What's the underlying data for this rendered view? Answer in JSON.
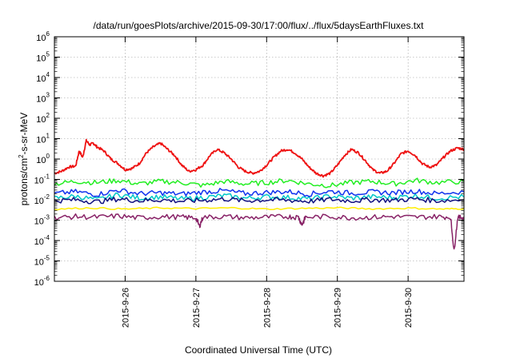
{
  "chart_data": {
    "type": "line",
    "title": "/data/run/goesPlots/archive/2015-09-30/17:00/flux/../flux/5daysEarthFluxes.txt",
    "xlabel": "Coordinated Universal Time (UTC)",
    "ylabel_parts": [
      "protons/cm",
      "2",
      "-s-sr-MeV"
    ],
    "yscale": "log",
    "ylim": [
      1e-06,
      1000000.0
    ],
    "xlim_days": [
      "2015-09-25 00:00",
      "2015-09-30 19:00"
    ],
    "x_ticks": [
      "2015-9-26",
      "2015-9-27",
      "2015-9-28",
      "2015-9-29",
      "2015-9-30"
    ],
    "y_ticks": [
      {
        "base": "10",
        "exp": "-6"
      },
      {
        "base": "10",
        "exp": "-5"
      },
      {
        "base": "10",
        "exp": "-4"
      },
      {
        "base": "10",
        "exp": "-3"
      },
      {
        "base": "10",
        "exp": "-2"
      },
      {
        "base": "10",
        "exp": "-1"
      },
      {
        "base": "10",
        "exp": "0"
      },
      {
        "base": "10",
        "exp": "1"
      },
      {
        "base": "10",
        "exp": "2"
      },
      {
        "base": "10",
        "exp": "3"
      },
      {
        "base": "10",
        "exp": "4"
      },
      {
        "base": "10",
        "exp": "5"
      },
      {
        "base": "10",
        "exp": "6"
      }
    ],
    "grid": true,
    "series": [
      {
        "color": "#ee1111",
        "x": [
          0,
          0.1,
          0.2,
          0.3,
          0.35,
          0.4,
          0.45,
          0.5,
          0.55,
          0.6,
          0.7,
          0.8,
          0.9,
          1.0,
          1.1,
          1.2,
          1.3,
          1.4,
          1.5,
          1.6,
          1.7,
          1.8,
          1.9,
          2.0,
          2.1,
          2.2,
          2.3,
          2.4,
          2.5,
          2.6,
          2.7,
          2.8,
          2.9,
          3.0,
          3.1,
          3.2,
          3.3,
          3.4,
          3.5,
          3.6,
          3.7,
          3.8,
          3.9,
          4.0,
          4.1,
          4.2,
          4.3,
          4.4,
          4.5,
          4.6,
          4.7,
          4.8,
          4.9,
          5.0,
          5.1,
          5.2,
          5.3,
          5.4,
          5.5,
          5.6,
          5.7,
          5.79
        ],
        "values": [
          0.2,
          0.25,
          0.4,
          0.45,
          2.5,
          1.2,
          8,
          5,
          6,
          4,
          2.5,
          1,
          0.6,
          0.3,
          0.35,
          0.6,
          2,
          4,
          6,
          3,
          1.5,
          0.5,
          0.25,
          0.3,
          0.5,
          1.5,
          3,
          2,
          1,
          0.4,
          0.25,
          0.2,
          0.25,
          0.5,
          1.2,
          2.5,
          3,
          2,
          1,
          0.4,
          0.2,
          0.15,
          0.2,
          0.5,
          1.5,
          3,
          2,
          0.8,
          0.3,
          0.2,
          0.25,
          0.6,
          1.8,
          2.5,
          1.5,
          0.6,
          0.4,
          0.5,
          1.2,
          2.5,
          3.5,
          3.0
        ]
      },
      {
        "color": "#22ee22",
        "x": [
          0,
          0.3,
          0.6,
          0.9,
          1.2,
          1.5,
          1.8,
          2.1,
          2.4,
          2.7,
          3.0,
          3.3,
          3.6,
          3.9,
          4.2,
          4.5,
          4.8,
          5.1,
          5.4,
          5.79
        ],
        "values": [
          0.06,
          0.08,
          0.07,
          0.09,
          0.06,
          0.08,
          0.07,
          0.05,
          0.08,
          0.06,
          0.07,
          0.09,
          0.06,
          0.05,
          0.07,
          0.08,
          0.06,
          0.09,
          0.07,
          0.08
        ]
      },
      {
        "color": "#00c8c8",
        "x": [
          0,
          0.3,
          0.6,
          0.9,
          1.2,
          1.5,
          1.8,
          2.1,
          2.4,
          2.7,
          3.0,
          3.3,
          3.6,
          3.9,
          4.2,
          4.5,
          4.8,
          5.1,
          5.4,
          5.79
        ],
        "values": [
          0.012,
          0.015,
          0.01,
          0.018,
          0.012,
          0.014,
          0.011,
          0.013,
          0.016,
          0.012,
          0.014,
          0.013,
          0.011,
          0.015,
          0.012,
          0.014,
          0.013,
          0.016,
          0.012,
          0.014
        ]
      },
      {
        "color": "#1133ee",
        "x": [
          0,
          0.3,
          0.6,
          0.9,
          1.2,
          1.5,
          1.8,
          2.1,
          2.4,
          2.7,
          3.0,
          3.3,
          3.6,
          3.9,
          4.2,
          4.5,
          4.8,
          5.1,
          5.4,
          5.79
        ],
        "values": [
          0.02,
          0.025,
          0.018,
          0.03,
          0.02,
          0.022,
          0.019,
          0.024,
          0.028,
          0.02,
          0.023,
          0.025,
          0.019,
          0.026,
          0.021,
          0.024,
          0.022,
          0.027,
          0.02,
          0.025
        ]
      },
      {
        "color": "#101080",
        "x": [
          0,
          0.3,
          0.6,
          0.9,
          1.2,
          1.5,
          1.8,
          2.1,
          2.4,
          2.7,
          3.0,
          3.3,
          3.6,
          3.9,
          4.2,
          4.5,
          4.8,
          5.1,
          5.4,
          5.79
        ],
        "values": [
          0.009,
          0.01,
          0.008,
          0.011,
          0.009,
          0.01,
          0.0085,
          0.0095,
          0.011,
          0.009,
          0.01,
          0.0095,
          0.0085,
          0.0105,
          0.009,
          0.01,
          0.0095,
          0.011,
          0.009,
          0.01
        ]
      },
      {
        "color": "#ffee00",
        "x": [
          0,
          0.5,
          1.0,
          1.5,
          2.0,
          2.5,
          3.0,
          3.5,
          4.0,
          4.5,
          5.0,
          5.5,
          5.79
        ],
        "values": [
          0.0035,
          0.004,
          0.0035,
          0.004,
          0.0037,
          0.004,
          0.0035,
          0.0038,
          0.004,
          0.0036,
          0.0039,
          0.0035,
          0.0037
        ]
      },
      {
        "color": "#882266",
        "x": [
          0,
          0.3,
          0.6,
          0.9,
          1.2,
          1.5,
          1.8,
          2.0,
          2.05,
          2.1,
          2.4,
          2.7,
          3.0,
          3.3,
          3.45,
          3.5,
          3.55,
          3.9,
          4.2,
          4.5,
          4.8,
          5.1,
          5.4,
          5.6,
          5.65,
          5.7,
          5.79
        ],
        "values": [
          0.0013,
          0.0015,
          0.0014,
          0.0016,
          0.0013,
          0.0015,
          0.0014,
          0.0013,
          0.0005,
          0.0014,
          0.0015,
          0.0013,
          0.0014,
          0.0015,
          0.0014,
          0.0006,
          0.0014,
          0.0015,
          0.0013,
          0.0014,
          0.0015,
          0.0014,
          0.0015,
          0.0014,
          3e-05,
          0.0013,
          0.0014
        ]
      }
    ]
  }
}
